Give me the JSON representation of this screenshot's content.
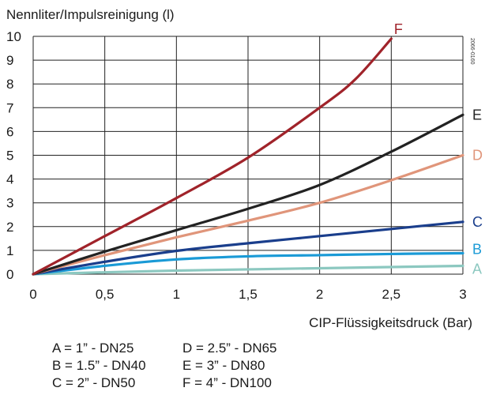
{
  "chart_data": {
    "type": "line",
    "title": "",
    "ylabel": "Nennliter/Impulsreinigung (l)",
    "xlabel": "CIP-Flüssigkeitsdruck (Bar)",
    "xlim": [
      0,
      3
    ],
    "ylim": [
      0,
      10
    ],
    "x_ticks": [
      "0",
      "0,5",
      "1",
      "1,5",
      "2",
      "2,5",
      "3"
    ],
    "y_ticks": [
      "0",
      "1",
      "2",
      "3",
      "4",
      "5",
      "6",
      "7",
      "8",
      "9",
      "10"
    ],
    "grid": true,
    "watermark": "2066-0160",
    "series": [
      {
        "name": "A",
        "color": "#8cc8c0",
        "x": [
          0,
          1,
          2,
          3
        ],
        "y": [
          0,
          0.15,
          0.25,
          0.35
        ]
      },
      {
        "name": "B",
        "color": "#1a9ad6",
        "x": [
          0,
          0.5,
          1,
          1.5,
          2,
          2.5,
          3
        ],
        "y": [
          0,
          0.35,
          0.62,
          0.75,
          0.8,
          0.85,
          0.88
        ]
      },
      {
        "name": "C",
        "color": "#1a3e8c",
        "x": [
          0,
          0.5,
          1,
          1.5,
          2,
          2.5,
          3
        ],
        "y": [
          0,
          0.52,
          0.98,
          1.3,
          1.6,
          1.9,
          2.2
        ]
      },
      {
        "name": "D",
        "color": "#e0957a",
        "x": [
          0,
          0.5,
          1,
          1.5,
          2,
          2.5,
          3
        ],
        "y": [
          0,
          0.8,
          1.55,
          2.25,
          3.0,
          3.95,
          5.0
        ]
      },
      {
        "name": "E",
        "color": "#222222",
        "x": [
          0,
          0.5,
          1,
          1.5,
          2,
          2.5,
          3
        ],
        "y": [
          0,
          0.95,
          1.85,
          2.75,
          3.75,
          5.15,
          6.7
        ]
      },
      {
        "name": "F",
        "color": "#a0232a",
        "x": [
          0,
          0.5,
          1,
          1.5,
          2,
          2.25,
          2.5
        ],
        "y": [
          0,
          1.6,
          3.2,
          4.9,
          7.0,
          8.2,
          9.9
        ]
      }
    ]
  },
  "legend": {
    "col1": [
      "A = 1” - DN25",
      "B = 1.5” - DN40",
      "C = 2” - DN50"
    ],
    "col2": [
      "D = 2.5” - DN65",
      "E = 3” - DN80",
      "F = 4” - DN100"
    ]
  }
}
